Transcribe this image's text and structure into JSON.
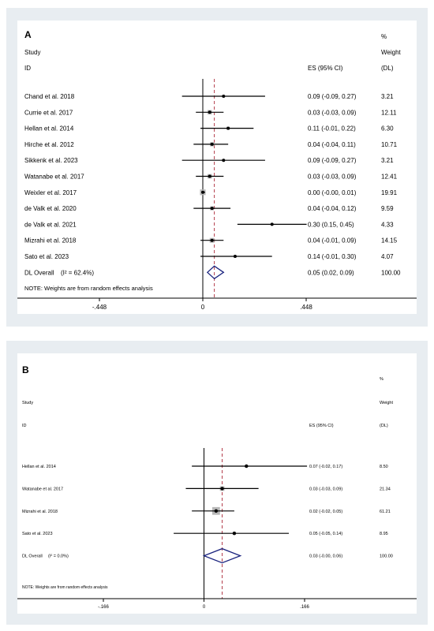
{
  "colors": {
    "panel_bg": "#e8edf1",
    "point": "#000000",
    "box": "#b8b8b8",
    "diamond": "#1a237e",
    "ref_line": "#000000",
    "overall_line": "#b23a48"
  },
  "chart_data": [
    {
      "type": "forest",
      "panel_label": "A",
      "header": {
        "pct": "%",
        "study": "Study",
        "weight": "Weight",
        "id": "ID",
        "es": "ES (95% CI)",
        "dl": "(DL)"
      },
      "xlim": [
        -0.448,
        0.448
      ],
      "ticks": [
        {
          "v": -0.448,
          "label": "-.448"
        },
        {
          "v": 0,
          "label": "0"
        },
        {
          "v": 0.448,
          "label": ".448"
        }
      ],
      "studies": [
        {
          "name": "Chand et al. 2018",
          "es": 0.09,
          "lo": -0.09,
          "hi": 0.27,
          "ci_text": "0.09 (-0.09, 0.27)",
          "weight": 3.21,
          "weight_text": "3.21"
        },
        {
          "name": "Currie et al. 2017",
          "es": 0.03,
          "lo": -0.03,
          "hi": 0.09,
          "ci_text": "0.03 (-0.03, 0.09)",
          "weight": 12.11,
          "weight_text": "12.11"
        },
        {
          "name": "Hellan et al. 2014",
          "es": 0.11,
          "lo": -0.01,
          "hi": 0.22,
          "ci_text": "0.11 (-0.01, 0.22)",
          "weight": 6.3,
          "weight_text": "6.30"
        },
        {
          "name": "Hirche et al. 2012",
          "es": 0.04,
          "lo": -0.04,
          "hi": 0.11,
          "ci_text": "0.04 (-0.04, 0.11)",
          "weight": 10.71,
          "weight_text": "10.71"
        },
        {
          "name": "Sikkenk et al. 2023",
          "es": 0.09,
          "lo": -0.09,
          "hi": 0.27,
          "ci_text": "0.09 (-0.09, 0.27)",
          "weight": 3.21,
          "weight_text": "3.21"
        },
        {
          "name": "Watanabe et al. 2017",
          "es": 0.03,
          "lo": -0.03,
          "hi": 0.09,
          "ci_text": "0.03 (-0.03, 0.09)",
          "weight": 12.41,
          "weight_text": "12.41"
        },
        {
          "name": "Weixler et al. 2017",
          "es": 0.0,
          "lo": -0.0,
          "hi": 0.01,
          "ci_text": "0.00 (-0.00, 0.01)",
          "weight": 19.91,
          "weight_text": "19.91"
        },
        {
          "name": "de Valk et al. 2020",
          "es": 0.04,
          "lo": -0.04,
          "hi": 0.12,
          "ci_text": "0.04 (-0.04, 0.12)",
          "weight": 9.59,
          "weight_text": "9.59"
        },
        {
          "name": "de Valk et al. 2021",
          "es": 0.3,
          "lo": 0.15,
          "hi": 0.45,
          "ci_text": "0.30 (0.15, 0.45)",
          "weight": 4.33,
          "weight_text": "4.33"
        },
        {
          "name": "Mizrahi et al. 2018",
          "es": 0.04,
          "lo": -0.01,
          "hi": 0.09,
          "ci_text": "0.04 (-0.01, 0.09)",
          "weight": 14.15,
          "weight_text": "14.15"
        },
        {
          "name": "Sato et al. 2023",
          "es": 0.14,
          "lo": -0.01,
          "hi": 0.3,
          "ci_text": "0.14 (-0.01, 0.30)",
          "weight": 4.07,
          "weight_text": "4.07"
        }
      ],
      "overall": {
        "label": "DL Overall",
        "i2_text": "(I² = 62.4%)",
        "es": 0.05,
        "lo": 0.02,
        "hi": 0.09,
        "ci_text": "0.05 (0.02, 0.09)",
        "weight_text": "100.00"
      },
      "note": "NOTE: Weights are from random effects analysis"
    },
    {
      "type": "forest",
      "panel_label": "B",
      "header": {
        "pct": "%",
        "study": "Study",
        "weight": "Weight",
        "id": "ID",
        "es": "ES (95% CI)",
        "dl": "(DL)"
      },
      "xlim": [
        -0.166,
        0.166
      ],
      "ticks": [
        {
          "v": -0.166,
          "label": "-.166"
        },
        {
          "v": 0,
          "label": "0"
        },
        {
          "v": 0.166,
          "label": ".166"
        }
      ],
      "studies": [
        {
          "name": "Hellan et al. 2014",
          "es": 0.07,
          "lo": -0.02,
          "hi": 0.17,
          "ci_text": "0.07 (-0.02, 0.17)",
          "weight": 8.5,
          "weight_text": "8.50"
        },
        {
          "name": "Watanabe et al. 2017",
          "es": 0.03,
          "lo": -0.03,
          "hi": 0.09,
          "ci_text": "0.03 (-0.03, 0.09)",
          "weight": 21.34,
          "weight_text": "21.34"
        },
        {
          "name": "Mizrahi et al. 2018",
          "es": 0.02,
          "lo": -0.02,
          "hi": 0.05,
          "ci_text": "0.02 (-0.02, 0.05)",
          "weight": 61.21,
          "weight_text": "61.21"
        },
        {
          "name": "Sato et al. 2023",
          "es": 0.05,
          "lo": -0.05,
          "hi": 0.14,
          "ci_text": "0.05 (-0.05, 0.14)",
          "weight": 8.95,
          "weight_text": "8.95"
        }
      ],
      "overall": {
        "label": "DL Overall",
        "i2_text": "(I² = 0.0%)",
        "es": 0.03,
        "lo": -0.0,
        "hi": 0.06,
        "ci_text": "0.03 (-0.00, 0.06)",
        "weight_text": "100.00"
      },
      "note": "NOTE: Weights are from random effects analysis"
    }
  ]
}
